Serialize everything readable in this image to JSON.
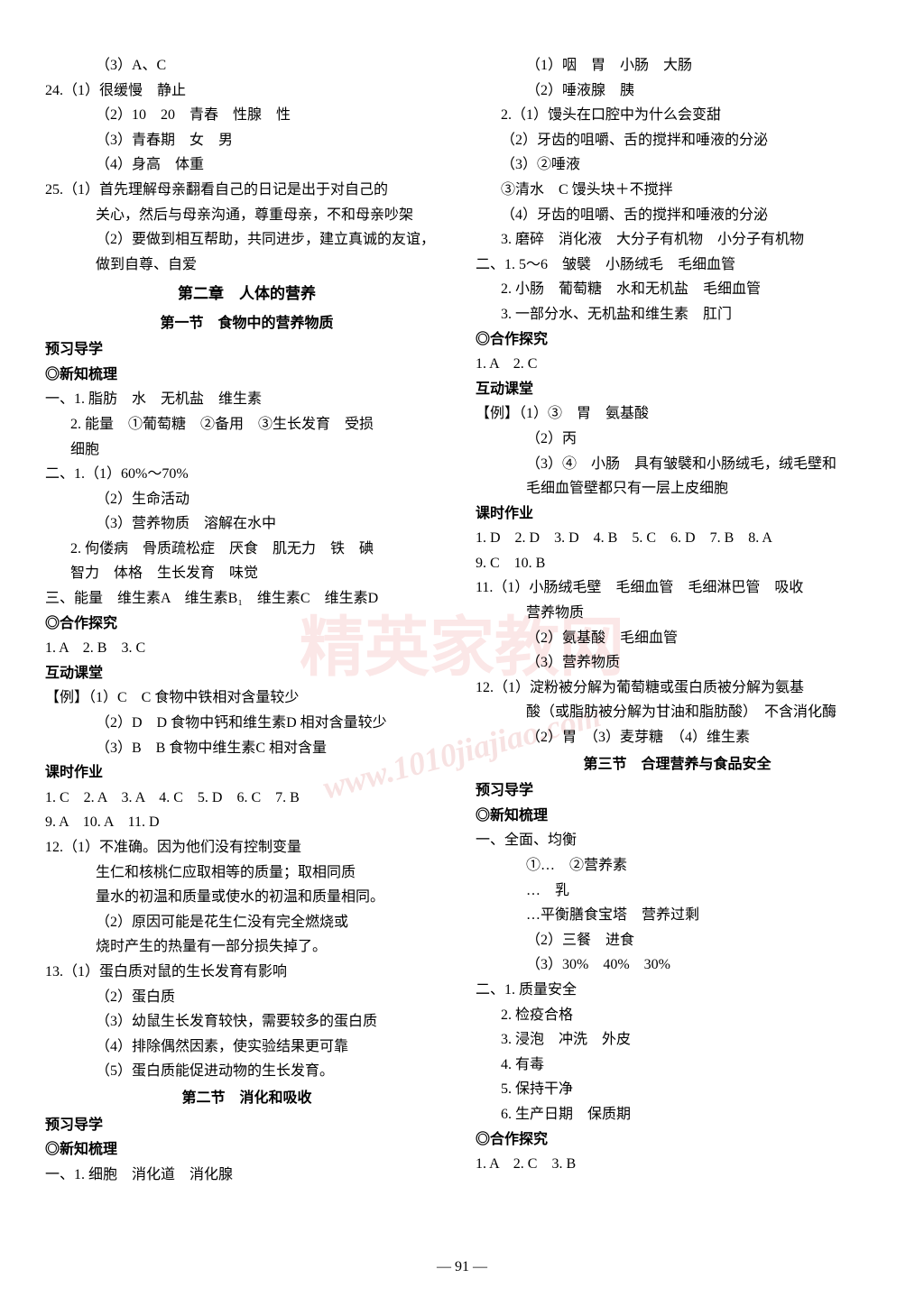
{
  "watermark_text": "精英家教网",
  "watermark_url": "www.1010jiajiao.com",
  "page_number": "— 91 —",
  "left_column": {
    "lines": [
      {
        "text": "（3）A、C",
        "indent": 2
      },
      {
        "text": "24.（1）很缓慢　静止",
        "indent": 0
      },
      {
        "text": "（2）10　20　青春　性腺　性",
        "indent": 2
      },
      {
        "text": "（3）青春期　女　男",
        "indent": 2
      },
      {
        "text": "（4）身高　体重",
        "indent": 2
      },
      {
        "text": "25.（1）首先理解母亲翻看自己的日记是出于对自己的",
        "indent": 0
      },
      {
        "text": "关心，然后与母亲沟通，尊重母亲，不和母亲吵架",
        "indent": 2
      },
      {
        "text": "（2）要做到相互帮助，共同进步，建立真诚的友谊，",
        "indent": 2
      },
      {
        "text": "做到自尊、自爱",
        "indent": 2
      },
      {
        "text": "第二章　人体的营养",
        "chapter": true
      },
      {
        "text": "第一节　食物中的营养物质",
        "section": true
      },
      {
        "text": "预习导学",
        "bold": true
      },
      {
        "text": "◎新知梳理",
        "bold": true
      },
      {
        "text": "一、1. 脂肪　水　无机盐　维生素",
        "indent": 0
      },
      {
        "text": "2. 能量　①葡萄糖　②备用　③生长发育　受损",
        "indent": 1
      },
      {
        "text": "细胞",
        "indent": 1
      },
      {
        "text": "二、1.（1）60%～70%",
        "indent": 0
      },
      {
        "text": "（2）生命活动",
        "indent": 2
      },
      {
        "text": "（3）营养物质　溶解在水中",
        "indent": 2
      },
      {
        "text": "2. 佝偻病　骨质疏松症　厌食　肌无力　铁　碘",
        "indent": 1
      },
      {
        "text": "智力　体格　生长发育　味觉",
        "indent": 1
      },
      {
        "text": "三、能量　维生素A　维生素B₁　维生素C　维生素D",
        "indent": 0
      },
      {
        "text": "◎合作探究",
        "bold": true
      },
      {
        "text": "1. A　2. B　3. C",
        "indent": 0
      },
      {
        "text": "互动课堂",
        "bold": true
      },
      {
        "text": "【例】（1）C　C 食物中铁相对含量较少",
        "indent": 0
      },
      {
        "text": "（2）D　D 食物中钙和维生素D 相对含量较少",
        "indent": 2
      },
      {
        "text": "（3）B　B 食物中维生素C 相对含量",
        "indent": 2
      },
      {
        "text": "课时作业",
        "bold": true
      },
      {
        "text": "1. C　2. A　3. A　4. C　5. D　6. C　7. B",
        "indent": 0
      },
      {
        "text": "9. A　10. A　11. D",
        "indent": 0
      },
      {
        "text": "12.（1）不准确。因为他们没有控制变量",
        "indent": 0
      },
      {
        "text": "生仁和核桃仁应取相等的质量；取相同质",
        "indent": 2
      },
      {
        "text": "量水的初温和质量或使水的初温和质量相同。",
        "indent": 2
      },
      {
        "text": "（2）原因可能是花生仁没有完全燃烧或",
        "indent": 2
      },
      {
        "text": "烧时产生的热量有一部分损失掉了。",
        "indent": 2
      },
      {
        "text": "13.（1）蛋白质对鼠的生长发育有影响",
        "indent": 0
      },
      {
        "text": "（2）蛋白质",
        "indent": 2
      },
      {
        "text": "（3）幼鼠生长发育较快，需要较多的蛋白质",
        "indent": 2
      },
      {
        "text": "（4）排除偶然因素，使实验结果更可靠",
        "indent": 2
      },
      {
        "text": "（5）蛋白质能促进动物的生长发育。",
        "indent": 2
      },
      {
        "text": "第二节　消化和吸收",
        "section": true
      },
      {
        "text": "预习导学",
        "bold": true
      },
      {
        "text": "◎新知梳理",
        "bold": true
      },
      {
        "text": "一、1. 细胞　消化道　消化腺",
        "indent": 0
      }
    ]
  },
  "right_column": {
    "lines": [
      {
        "text": "（1）咽　胃　小肠　大肠",
        "indent": 2
      },
      {
        "text": "（2）唾液腺　胰",
        "indent": 2
      },
      {
        "text": "2.（1）馒头在口腔中为什么会变甜",
        "indent": 1
      },
      {
        "text": "（2）牙齿的咀嚼、舌的搅拌和唾液的分泌",
        "indent": 1
      },
      {
        "text": "（3）②唾液",
        "indent": 1
      },
      {
        "text": "③清水　C 馒头块＋不搅拌",
        "indent": 1
      },
      {
        "text": "（4）牙齿的咀嚼、舌的搅拌和唾液的分泌",
        "indent": 1
      },
      {
        "text": "3. 磨碎　消化液　大分子有机物　小分子有机物",
        "indent": 1
      },
      {
        "text": "二、1. 5～6　皱襞　小肠绒毛　毛细血管",
        "indent": 0
      },
      {
        "text": "2. 小肠　葡萄糖　水和无机盐　毛细血管",
        "indent": 1
      },
      {
        "text": "3. 一部分水、无机盐和维生素　肛门",
        "indent": 1
      },
      {
        "text": "◎合作探究",
        "bold": true
      },
      {
        "text": "1. A　2. C",
        "indent": 0
      },
      {
        "text": "互动课堂",
        "bold": true
      },
      {
        "text": "【例】（1）③　胃　氨基酸",
        "indent": 0
      },
      {
        "text": "（2）丙",
        "indent": 2
      },
      {
        "text": "（3）④　小肠　具有皱襞和小肠绒毛，绒毛壁和",
        "indent": 2
      },
      {
        "text": "毛细血管壁都只有一层上皮细胞",
        "indent": 2
      },
      {
        "text": "课时作业",
        "bold": true
      },
      {
        "text": "1. D　2. D　3. D　4. B　5. C　6. D　7. B　8. A",
        "indent": 0
      },
      {
        "text": "9. C　10. B",
        "indent": 0
      },
      {
        "text": "11.（1）小肠绒毛壁　毛细血管　毛细淋巴管　吸收",
        "indent": 0
      },
      {
        "text": "营养物质",
        "indent": 2
      },
      {
        "text": "（2）氨基酸　毛细血管",
        "indent": 2
      },
      {
        "text": "（3）营养物质",
        "indent": 2
      },
      {
        "text": "12.（1）淀粉被分解为葡萄糖或蛋白质被分解为氨基",
        "indent": 0
      },
      {
        "text": "酸（或脂肪被分解为甘油和脂肪酸）　不含消化酶",
        "indent": 2
      },
      {
        "text": "（2）胃　（3）麦芽糖　（4）维生素",
        "indent": 2
      },
      {
        "text": "第三节　合理营养与食品安全",
        "section": true
      },
      {
        "text": "预习导学",
        "bold": true
      },
      {
        "text": "◎新知梳理",
        "bold": true
      },
      {
        "text": "一、全面、均衡",
        "indent": 0
      },
      {
        "text": "①…　②营养素",
        "indent": 2
      },
      {
        "text": "…　乳",
        "indent": 2
      },
      {
        "text": "…平衡膳食宝塔　营养过剩",
        "indent": 2
      },
      {
        "text": "（2）三餐　进食",
        "indent": 2
      },
      {
        "text": "（3）30%　40%　30%",
        "indent": 2
      },
      {
        "text": "二、1. 质量安全",
        "indent": 0
      },
      {
        "text": "2. 检疫合格",
        "indent": 1
      },
      {
        "text": "3. 浸泡　冲洗　外皮",
        "indent": 1
      },
      {
        "text": "4. 有毒",
        "indent": 1
      },
      {
        "text": "5. 保持干净",
        "indent": 1
      },
      {
        "text": "6. 生产日期　保质期",
        "indent": 1
      },
      {
        "text": "◎合作探究",
        "bold": true
      },
      {
        "text": "1. A　2. C　3. B",
        "indent": 0
      }
    ]
  }
}
